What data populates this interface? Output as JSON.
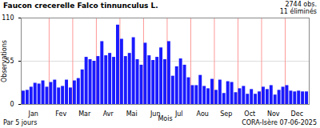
{
  "chart_data": {
    "type": "bar",
    "title": "Faucon crecerelle  Falco tinnunculus L.",
    "annotations": [
      "2744 obs.",
      "11 éliminés",
      "Par 5 jours",
      "CORA-Isère 07-06-2025"
    ],
    "x_label": "Mois",
    "y_label": "Observations",
    "categories": [
      "Jan",
      null,
      null,
      null,
      null,
      null,
      null,
      "Fev",
      null,
      null,
      null,
      null,
      null,
      "Mar",
      null,
      null,
      null,
      null,
      null,
      "Avr",
      null,
      null,
      null,
      null,
      null,
      "Mai",
      null,
      null,
      null,
      null,
      null,
      "Jun",
      null,
      null,
      null,
      null,
      null,
      "Jul",
      null,
      null,
      null,
      null,
      null,
      "Aou",
      null,
      null,
      null,
      null,
      null,
      "Sep",
      null,
      null,
      null,
      null,
      null,
      "Oct",
      null,
      null,
      null,
      null,
      null,
      "Nov",
      null,
      null,
      null,
      null,
      null,
      "Dec",
      null,
      null,
      null,
      null,
      null
    ],
    "values": [
      17,
      18,
      22,
      27,
      26,
      30,
      22,
      28,
      31,
      21,
      23,
      31,
      21,
      30,
      33,
      44,
      60,
      57,
      55,
      61,
      80,
      62,
      65,
      60,
      101,
      83,
      61,
      65,
      85,
      57,
      50,
      78,
      62,
      56,
      60,
      72,
      57,
      80,
      36,
      48,
      58,
      50,
      34,
      24,
      24,
      37,
      23,
      20,
      32,
      18,
      31,
      14,
      29,
      28,
      15,
      20,
      23,
      13,
      19,
      13,
      16,
      22,
      19,
      24,
      12,
      18,
      22,
      24,
      17,
      16,
      17,
      16,
      16
    ],
    "color": "#1a1aff",
    "ylim": [
      0,
      110
    ],
    "yticks": [
      0,
      55,
      110
    ],
    "grid": true
  }
}
